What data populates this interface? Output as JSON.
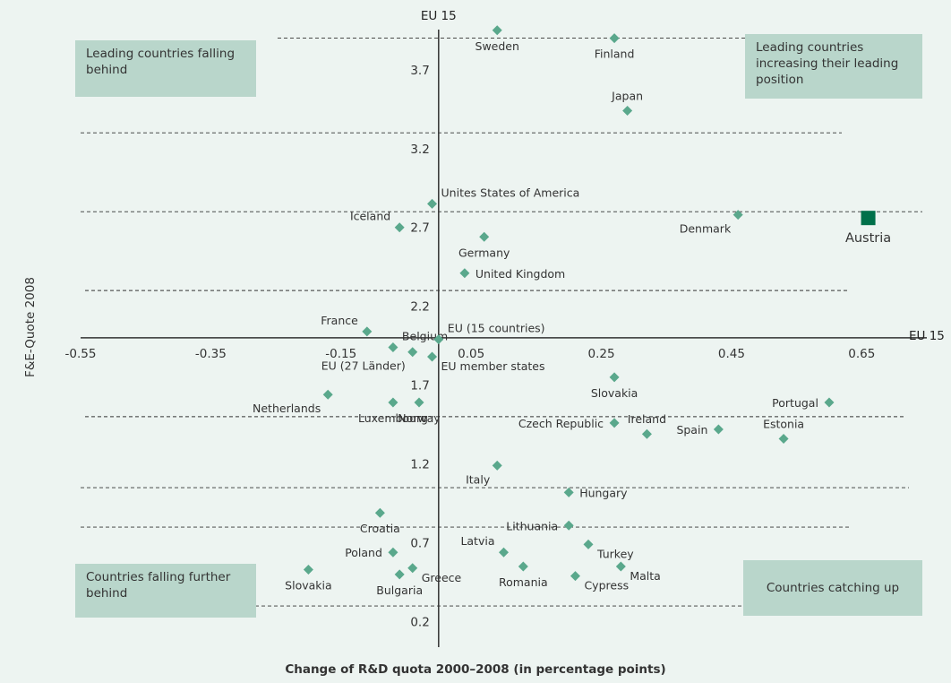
{
  "chart_data": {
    "type": "scatter",
    "title": "",
    "xlabel": "Change of R&D quota 2000–2008 (in percentage points)",
    "ylabel": "F&E-Quote 2008",
    "xlim": [
      -0.55,
      0.75
    ],
    "ylim": [
      0.05,
      4.0
    ],
    "x_ticks": [
      "-0.55",
      "-0.35",
      "-0.15",
      "0.05",
      "0.25",
      "0.45",
      "0.65"
    ],
    "x_tick_values": [
      -0.55,
      -0.35,
      -0.15,
      0.05,
      0.25,
      0.45,
      0.65
    ],
    "y_ticks": [
      "3.7",
      "3.2",
      "2.7",
      "2.2",
      "1.7",
      "1.2",
      "0.7",
      "0.2"
    ],
    "y_tick_values": [
      3.7,
      3.2,
      2.7,
      2.2,
      1.7,
      1.2,
      0.7,
      0.2
    ],
    "gridlines_y": [
      3.9,
      3.3,
      2.8,
      2.3,
      1.5,
      1.05,
      0.8,
      0.3
    ],
    "grid": "horizontal dashed",
    "vertical_axis_x": 0.0,
    "horizontal_axis_y": 2.0,
    "vertical_axis_label": "EU 15",
    "horizontal_axis_label": "EU 15",
    "marker_color": "#5aa88c",
    "highlight_color": "#00704a",
    "quadrant_labels": {
      "top_left": "Leading countries falling behind",
      "top_right": "Leading countries increasing their leading position",
      "bottom_left": "Countries falling further behind",
      "bottom_right": "Countries catching up"
    },
    "points": [
      {
        "label": "Sweden",
        "x": 0.09,
        "y": 3.95,
        "label_pos": "below"
      },
      {
        "label": "Finland",
        "x": 0.27,
        "y": 3.9,
        "label_pos": "below"
      },
      {
        "label": "Japan",
        "x": 0.29,
        "y": 3.44,
        "label_pos": "above"
      },
      {
        "label": "Unites States of America",
        "x": -0.01,
        "y": 2.85,
        "label_pos": "above-right"
      },
      {
        "label": "Iceland",
        "x": -0.06,
        "y": 2.7,
        "label_pos": "above-left"
      },
      {
        "label": "Denmark",
        "x": 0.46,
        "y": 2.78,
        "label_pos": "below-left"
      },
      {
        "label": "Austria",
        "x": 0.66,
        "y": 2.76,
        "label_pos": "below",
        "highlight": true
      },
      {
        "label": "Germany",
        "x": 0.07,
        "y": 2.64,
        "label_pos": "below"
      },
      {
        "label": "United Kingdom",
        "x": 0.04,
        "y": 2.41,
        "label_pos": "right"
      },
      {
        "label": "France",
        "x": -0.11,
        "y": 2.04,
        "label_pos": "above-left"
      },
      {
        "label": "Belgium",
        "x": -0.07,
        "y": 1.94,
        "label_pos": "above-right"
      },
      {
        "label": "EU (15 countries)",
        "x": 0.0,
        "y": 1.99,
        "label_pos": "above-right"
      },
      {
        "label": "EU (27 Länder)",
        "x": -0.04,
        "y": 1.91,
        "label_pos": "below-left"
      },
      {
        "label": "EU member states",
        "x": -0.01,
        "y": 1.88,
        "label_pos": "below-right"
      },
      {
        "label": "Slovakia",
        "x": 0.27,
        "y": 1.75,
        "label_pos": "below"
      },
      {
        "label": "Netherlands",
        "x": -0.17,
        "y": 1.64,
        "label_pos": "below-left"
      },
      {
        "label": "Luxembourg",
        "x": -0.07,
        "y": 1.59,
        "label_pos": "below"
      },
      {
        "label": "Norway",
        "x": -0.03,
        "y": 1.59,
        "label_pos": "below"
      },
      {
        "label": "Portugal",
        "x": 0.6,
        "y": 1.59,
        "label_pos": "left"
      },
      {
        "label": "Czech Republic",
        "x": 0.27,
        "y": 1.46,
        "label_pos": "left"
      },
      {
        "label": "Ireland",
        "x": 0.32,
        "y": 1.39,
        "label_pos": "above"
      },
      {
        "label": "Spain",
        "x": 0.43,
        "y": 1.42,
        "label_pos": "left"
      },
      {
        "label": "Estonia",
        "x": 0.53,
        "y": 1.36,
        "label_pos": "above"
      },
      {
        "label": "Italy",
        "x": 0.09,
        "y": 1.19,
        "label_pos": "below-left"
      },
      {
        "label": "Hungary",
        "x": 0.2,
        "y": 1.02,
        "label_pos": "right"
      },
      {
        "label": "Croatia",
        "x": -0.09,
        "y": 0.89,
        "label_pos": "below"
      },
      {
        "label": "Lithuania",
        "x": 0.2,
        "y": 0.81,
        "label_pos": "left"
      },
      {
        "label": "Latvia",
        "x": 0.1,
        "y": 0.64,
        "label_pos": "above-left"
      },
      {
        "label": "Turkey",
        "x": 0.23,
        "y": 0.69,
        "label_pos": "below-right"
      },
      {
        "label": "Poland",
        "x": -0.07,
        "y": 0.64,
        "label_pos": "left"
      },
      {
        "label": "Slovakia",
        "x": -0.2,
        "y": 0.53,
        "label_pos": "below"
      },
      {
        "label": "Greece",
        "x": -0.04,
        "y": 0.54,
        "label_pos": "below-right"
      },
      {
        "label": "Bulgaria",
        "x": -0.06,
        "y": 0.5,
        "label_pos": "below"
      },
      {
        "label": "Romania",
        "x": 0.13,
        "y": 0.55,
        "label_pos": "below"
      },
      {
        "label": "Malta",
        "x": 0.28,
        "y": 0.55,
        "label_pos": "below-right"
      },
      {
        "label": "Cypress",
        "x": 0.21,
        "y": 0.49,
        "label_pos": "below-right"
      }
    ]
  }
}
